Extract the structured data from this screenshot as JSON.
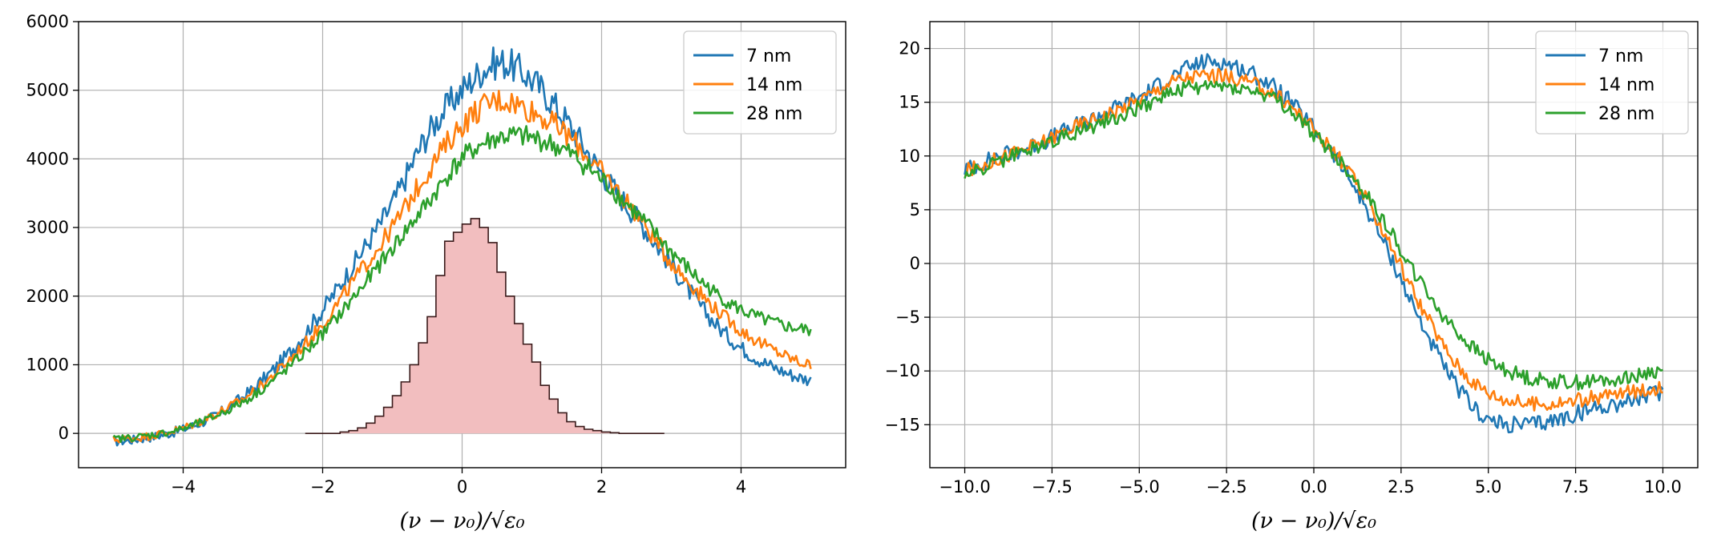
{
  "chart_data": [
    {
      "type": "line",
      "xlim": [
        -5.5,
        5.5
      ],
      "ylim": [
        -500,
        6000
      ],
      "xticks": [
        "−4",
        "−2",
        "0",
        "2",
        "4"
      ],
      "xtick_values": [
        -4,
        -2,
        0,
        2,
        4
      ],
      "yticks": [
        "0",
        "1000",
        "2000",
        "3000",
        "4000",
        "5000",
        "6000"
      ],
      "ytick_values": [
        0,
        1000,
        2000,
        3000,
        4000,
        5000,
        6000
      ],
      "xlabel": "(ν − ν₀)/√ε₀",
      "grid": true,
      "legend_position": "top-right",
      "series": [
        {
          "name": "7 nm",
          "color": "#1f77b4",
          "x": [
            -5.0,
            -4.5,
            -4.0,
            -3.5,
            -3.0,
            -2.5,
            -2.0,
            -1.5,
            -1.0,
            -0.5,
            0.0,
            0.5,
            1.0,
            1.5,
            2.0,
            2.5,
            3.0,
            3.5,
            4.0,
            4.5,
            5.0
          ],
          "y": [
            -120,
            -60,
            60,
            280,
            650,
            1150,
            1800,
            2550,
            3350,
            4350,
            5000,
            5400,
            5150,
            4550,
            3800,
            3150,
            2450,
            1750,
            1250,
            950,
            780
          ]
        },
        {
          "name": "14 nm",
          "color": "#ff7f0e",
          "x": [
            -5.0,
            -4.5,
            -4.0,
            -3.5,
            -3.0,
            -2.5,
            -2.0,
            -1.5,
            -1.0,
            -0.5,
            0.0,
            0.5,
            1.0,
            1.5,
            2.0,
            2.5,
            3.0,
            3.5,
            4.0,
            4.5,
            5.0
          ],
          "y": [
            -90,
            -40,
            80,
            300,
            600,
            1050,
            1600,
            2300,
            3000,
            3800,
            4500,
            4850,
            4700,
            4350,
            3800,
            3200,
            2500,
            1950,
            1500,
            1200,
            1000
          ]
        },
        {
          "name": "28 nm",
          "color": "#2ca02c",
          "x": [
            -5.0,
            -4.5,
            -4.0,
            -3.5,
            -3.0,
            -2.5,
            -2.0,
            -1.5,
            -1.0,
            -0.5,
            0.0,
            0.5,
            1.0,
            1.5,
            2.0,
            2.5,
            3.0,
            3.5,
            4.0,
            4.5,
            5.0
          ],
          "y": [
            -80,
            -30,
            70,
            270,
            550,
            950,
            1450,
            2050,
            2700,
            3350,
            4000,
            4300,
            4300,
            4100,
            3700,
            3200,
            2650,
            2150,
            1800,
            1600,
            1500
          ]
        }
      ],
      "histogram": {
        "fill": "#f2bebf",
        "edge": "#3a1a1a",
        "bin_edges": [
          -2.25,
          -2.0,
          -1.75,
          -1.625,
          -1.5,
          -1.375,
          -1.25,
          -1.125,
          -1.0,
          -0.875,
          -0.75,
          -0.625,
          -0.5,
          -0.375,
          -0.25,
          -0.125,
          0.0,
          0.125,
          0.25,
          0.375,
          0.5,
          0.625,
          0.75,
          0.875,
          1.0,
          1.125,
          1.25,
          1.375,
          1.5,
          1.625,
          1.75,
          1.875,
          2.0,
          2.125,
          2.25,
          2.375,
          2.5,
          2.625,
          2.75,
          2.9
        ],
        "counts": [
          0,
          0,
          20,
          40,
          80,
          150,
          250,
          380,
          550,
          750,
          1000,
          1320,
          1700,
          2300,
          2800,
          2930,
          3050,
          3130,
          3000,
          2780,
          2350,
          2000,
          1600,
          1300,
          1040,
          700,
          500,
          300,
          170,
          100,
          60,
          40,
          20,
          10,
          0,
          0,
          0,
          0,
          0
        ]
      }
    },
    {
      "type": "line",
      "xlim": [
        -11,
        11
      ],
      "ylim": [
        -19,
        22.5
      ],
      "xticks": [
        "−10.0",
        "−7.5",
        "−5.0",
        "−2.5",
        "0.0",
        "2.5",
        "5.0",
        "7.5",
        "10.0"
      ],
      "xtick_values": [
        -10,
        -7.5,
        -5,
        -2.5,
        0,
        2.5,
        5,
        7.5,
        10
      ],
      "yticks": [
        "−15",
        "−10",
        "−5",
        "0",
        "5",
        "10",
        "15",
        "20"
      ],
      "ytick_values": [
        -15,
        -10,
        -5,
        0,
        5,
        10,
        15,
        20
      ],
      "xlabel": "(ν − ν₀)/√ε₀",
      "grid": true,
      "legend_position": "top-right",
      "series": [
        {
          "name": "7 nm",
          "color": "#1f77b4",
          "x": [
            -10,
            -9,
            -8,
            -7,
            -6,
            -5,
            -4,
            -3,
            -2,
            -1,
            0,
            1,
            2,
            3,
            4,
            5,
            6,
            7,
            8,
            9,
            10
          ],
          "y": [
            8.8,
            10,
            11,
            12.5,
            14,
            15.5,
            17.5,
            18.8,
            18,
            16,
            12.5,
            8,
            2,
            -5,
            -11,
            -14.5,
            -15,
            -14.5,
            -13.5,
            -12.8,
            -12
          ]
        },
        {
          "name": "14 nm",
          "color": "#ff7f0e",
          "x": [
            -10,
            -9,
            -8,
            -7,
            -6,
            -5,
            -4,
            -3,
            -2,
            -1,
            0,
            1,
            2,
            3,
            4,
            5,
            6,
            7,
            8,
            9,
            10
          ],
          "y": [
            8.6,
            9.8,
            11,
            12.5,
            13.8,
            15.2,
            17,
            17.5,
            17,
            15.5,
            12.5,
            8.5,
            3,
            -3.5,
            -9,
            -12,
            -13,
            -13,
            -12.5,
            -12,
            -11.5
          ]
        },
        {
          "name": "28 nm",
          "color": "#2ca02c",
          "x": [
            -10,
            -9,
            -8,
            -7,
            -6,
            -5,
            -4,
            -3,
            -2,
            -1,
            0,
            1,
            2,
            3,
            4,
            5,
            6,
            7,
            8,
            9,
            10
          ],
          "y": [
            8.3,
            9.5,
            10.8,
            12,
            13.2,
            14.5,
            16,
            16.5,
            16.2,
            15,
            12,
            8.5,
            4,
            -1.5,
            -6,
            -9,
            -10.5,
            -11,
            -11,
            -10.5,
            -10
          ]
        }
      ]
    }
  ]
}
